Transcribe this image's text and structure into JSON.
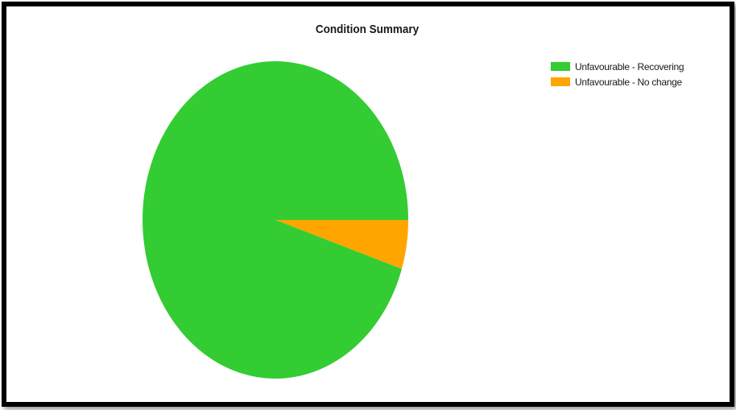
{
  "chart_data": {
    "type": "pie",
    "title": "Condition Summary",
    "series": [
      {
        "name": "Unfavourable - Recovering",
        "value": 95,
        "color": "#33cc33"
      },
      {
        "name": "Unfavourable - No change",
        "value": 5,
        "color": "#ffa500"
      }
    ],
    "legend_position": "top-right"
  }
}
